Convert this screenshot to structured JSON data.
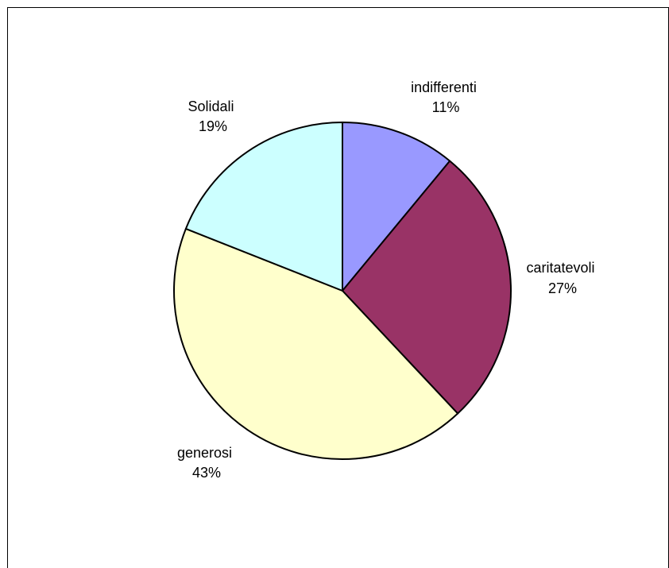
{
  "chart_data": {
    "type": "pie",
    "title": "",
    "slices": [
      {
        "label": "indifferenti",
        "value": 11,
        "display": "11%",
        "color": "#9999ff"
      },
      {
        "label": "caritatevoli",
        "value": 27,
        "display": "27%",
        "color": "#993366"
      },
      {
        "label": "generosi",
        "value": 43,
        "display": "43%",
        "color": "#ffffcc"
      },
      {
        "label": "Solidali",
        "value": 19,
        "display": "19%",
        "color": "#ccffff"
      }
    ],
    "start_angle_deg": 0,
    "direction": "clockwise",
    "legend": "none",
    "border_color": "#000000"
  }
}
